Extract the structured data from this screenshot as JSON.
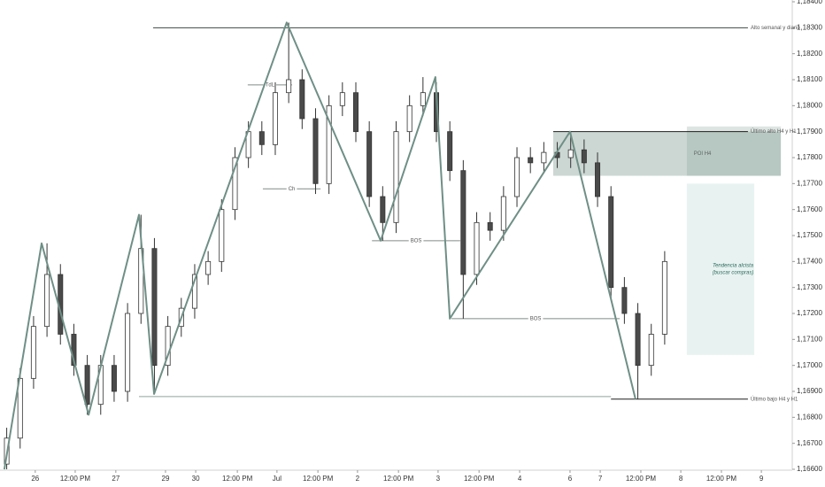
{
  "chart_data": {
    "type": "candlestick",
    "xlim": [
      0,
      236
    ],
    "ylim": [
      1.166,
      1.184
    ],
    "xticks": [
      {
        "value": 10.5,
        "label": "26"
      },
      {
        "value": 22.4,
        "label": "12:00 PM"
      },
      {
        "value": 34.5,
        "label": "27"
      },
      {
        "value": 49.3,
        "label": "29"
      },
      {
        "value": 58.3,
        "label": "30"
      },
      {
        "value": 70.7,
        "label": "12:00 PM"
      },
      {
        "value": 82.5,
        "label": "Jul"
      },
      {
        "value": 94.7,
        "label": "12:00 PM"
      },
      {
        "value": 106.5,
        "label": "2"
      },
      {
        "value": 118.7,
        "label": "12:00 PM"
      },
      {
        "value": 130.5,
        "label": "3"
      },
      {
        "value": 142.7,
        "label": "12:00 PM"
      },
      {
        "value": 154.8,
        "label": "4"
      },
      {
        "value": 169.8,
        "label": "6"
      },
      {
        "value": 178.8,
        "label": "7"
      },
      {
        "value": 190.9,
        "label": "12:00 PM"
      },
      {
        "value": 202.8,
        "label": "8"
      },
      {
        "value": 214.9,
        "label": "12:00 PM"
      },
      {
        "value": 226.8,
        "label": "9"
      }
    ],
    "yticks": [
      {
        "value": 1.166,
        "label": "1,16600"
      },
      {
        "value": 1.167,
        "label": "1,16700"
      },
      {
        "value": 1.168,
        "label": "1,16800"
      },
      {
        "value": 1.169,
        "label": "1,16900"
      },
      {
        "value": 1.17,
        "label": "1,17000"
      },
      {
        "value": 1.171,
        "label": "1,17100"
      },
      {
        "value": 1.172,
        "label": "1,17200"
      },
      {
        "value": 1.173,
        "label": "1,17300"
      },
      {
        "value": 1.174,
        "label": "1,17400"
      },
      {
        "value": 1.175,
        "label": "1,17500"
      },
      {
        "value": 1.176,
        "label": "1,17600"
      },
      {
        "value": 1.177,
        "label": "1,17700"
      },
      {
        "value": 1.178,
        "label": "1,17800"
      },
      {
        "value": 1.179,
        "label": "1,17900"
      },
      {
        "value": 1.18,
        "label": "1,18000"
      },
      {
        "value": 1.181,
        "label": "1,18100"
      },
      {
        "value": 1.182,
        "label": "1,18200"
      },
      {
        "value": 1.183,
        "label": "1,18300"
      },
      {
        "value": 1.184,
        "label": "1,18400"
      }
    ],
    "up_color": "#ffffff",
    "down_color": "#4a4a4a",
    "candles": {
      "x": [
        2,
        6,
        10,
        14,
        18,
        22,
        26,
        30,
        34,
        38,
        42,
        46,
        50,
        54,
        58,
        62,
        66,
        70,
        74,
        78,
        82,
        86,
        90,
        94,
        98,
        102,
        106,
        110,
        114,
        118,
        122,
        126,
        130,
        134,
        138,
        142,
        146,
        150,
        154,
        158,
        162,
        166,
        170,
        174,
        178,
        182,
        186,
        190,
        194,
        198
      ],
      "open": [
        1.1662,
        1.1672,
        1.1695,
        1.1715,
        1.1735,
        1.1712,
        1.17,
        1.1685,
        1.17,
        1.169,
        1.172,
        1.1745,
        1.17,
        1.1715,
        1.1722,
        1.1735,
        1.174,
        1.176,
        1.178,
        1.179,
        1.1785,
        1.1805,
        1.181,
        1.1795,
        1.177,
        1.18,
        1.1805,
        1.179,
        1.1765,
        1.1755,
        1.179,
        1.18,
        1.1805,
        1.179,
        1.1775,
        1.1735,
        1.1755,
        1.1752,
        1.1765,
        1.178,
        1.1778,
        1.1782,
        1.178,
        1.1783,
        1.1778,
        1.1765,
        1.173,
        1.172,
        1.17,
        1.1712
      ],
      "high": [
        1.1676,
        1.1699,
        1.1719,
        1.1747,
        1.1739,
        1.1716,
        1.1704,
        1.1704,
        1.1704,
        1.1724,
        1.1758,
        1.1749,
        1.1719,
        1.1726,
        1.1739,
        1.1744,
        1.1764,
        1.1784,
        1.1794,
        1.1794,
        1.1809,
        1.1832,
        1.1814,
        1.1799,
        1.1804,
        1.1809,
        1.1809,
        1.1794,
        1.1769,
        1.1794,
        1.1804,
        1.1811,
        1.1809,
        1.1794,
        1.1779,
        1.1759,
        1.1759,
        1.1769,
        1.1784,
        1.1784,
        1.1786,
        1.1786,
        1.179,
        1.1787,
        1.1782,
        1.1769,
        1.1734,
        1.1724,
        1.1716,
        1.1744
      ],
      "low": [
        1.166,
        1.1668,
        1.1691,
        1.1711,
        1.1708,
        1.1696,
        1.1681,
        1.1681,
        1.1686,
        1.1686,
        1.1716,
        1.1689,
        1.1696,
        1.1711,
        1.1718,
        1.1731,
        1.1736,
        1.1756,
        1.1776,
        1.1781,
        1.1781,
        1.1801,
        1.1791,
        1.1766,
        1.1766,
        1.1796,
        1.1786,
        1.1761,
        1.1748,
        1.1751,
        1.1786,
        1.1796,
        1.1786,
        1.1771,
        1.1718,
        1.1731,
        1.1748,
        1.1748,
        1.1761,
        1.1774,
        1.1774,
        1.1776,
        1.1776,
        1.1774,
        1.1761,
        1.1726,
        1.1716,
        1.1687,
        1.1696,
        1.1708
      ],
      "close": [
        1.1672,
        1.1695,
        1.1715,
        1.1735,
        1.1712,
        1.17,
        1.1685,
        1.17,
        1.169,
        1.172,
        1.1745,
        1.17,
        1.1715,
        1.1722,
        1.1735,
        1.174,
        1.176,
        1.178,
        1.179,
        1.1785,
        1.1805,
        1.181,
        1.1795,
        1.177,
        1.18,
        1.1805,
        1.179,
        1.1765,
        1.1755,
        1.179,
        1.18,
        1.1805,
        1.179,
        1.1775,
        1.1735,
        1.1755,
        1.1752,
        1.1765,
        1.178,
        1.1778,
        1.1782,
        1.178,
        1.1783,
        1.1778,
        1.1765,
        1.173,
        1.172,
        1.17,
        1.1712,
        1.174
      ]
    },
    "zigzag": {
      "color": "#6f8f86",
      "x": [
        1.3,
        12.4,
        26.4,
        41.4,
        45.9,
        85.4,
        113.4,
        129.7,
        134,
        169.8,
        189.3
      ],
      "values": [
        1.166,
        1.1747,
        1.1681,
        1.1758,
        1.1689,
        1.1832,
        1.1748,
        1.1811,
        1.1718,
        1.179,
        1.1687
      ]
    },
    "levels": [
      {
        "label": "Alto semanal y diario",
        "price": 1.183,
        "x": [
          45.6,
          222.8
        ],
        "label_at": "end",
        "color": "#3c4a46"
      },
      {
        "label": "Último alto H4 y H1",
        "price": 1.179,
        "x": [
          164.8,
          222.8
        ],
        "label_at": "end",
        "color": "#1e1e1e"
      },
      {
        "label": "Último bajo H4 y H1",
        "price": 1.1687,
        "x": [
          182,
          222.8
        ],
        "label_at": "end",
        "color": "#1e1e1e"
      },
      {
        "price": 1.1688,
        "x": [
          41.4,
          182
        ],
        "color": "#8fa39d"
      },
      {
        "label": "BOS",
        "price": 1.1748,
        "x": [
          110.8,
          137.1
        ],
        "label_at": "middle",
        "color": "#7f8c88"
      },
      {
        "label": "BOS",
        "price": 1.1718,
        "x": [
          134.5,
          184.6
        ],
        "label_at": "middle",
        "color": "#7f8c88"
      },
      {
        "label": "Ch",
        "price": 1.1768,
        "x": [
          78.3,
          95.5
        ],
        "label_at": "middle",
        "color": "#7f8c88"
      },
      {
        "label": "TdL",
        "price": 1.1808,
        "x": [
          73.8,
          87
        ],
        "label_at": "middle",
        "color": "#7f8c88"
      }
    ],
    "zones": [
      {
        "label": [
          "POI H4"
        ],
        "low": 1.1773,
        "high": 1.179,
        "x": [
          164.8,
          232.6
        ],
        "color": "rgba(120,150,140,0.38)"
      },
      {
        "low": 1.1773,
        "high": 1.1792,
        "x": [
          204.6,
          232.6
        ],
        "color": "rgba(120,150,140,0.25)"
      },
      {
        "label": [
          "Tendencia alcista",
          "(buscar compras)"
        ],
        "low": 1.1704,
        "high": 1.177,
        "x": [
          204.6,
          224.7
        ],
        "color": "rgba(150,200,190,0.22)"
      }
    ]
  }
}
